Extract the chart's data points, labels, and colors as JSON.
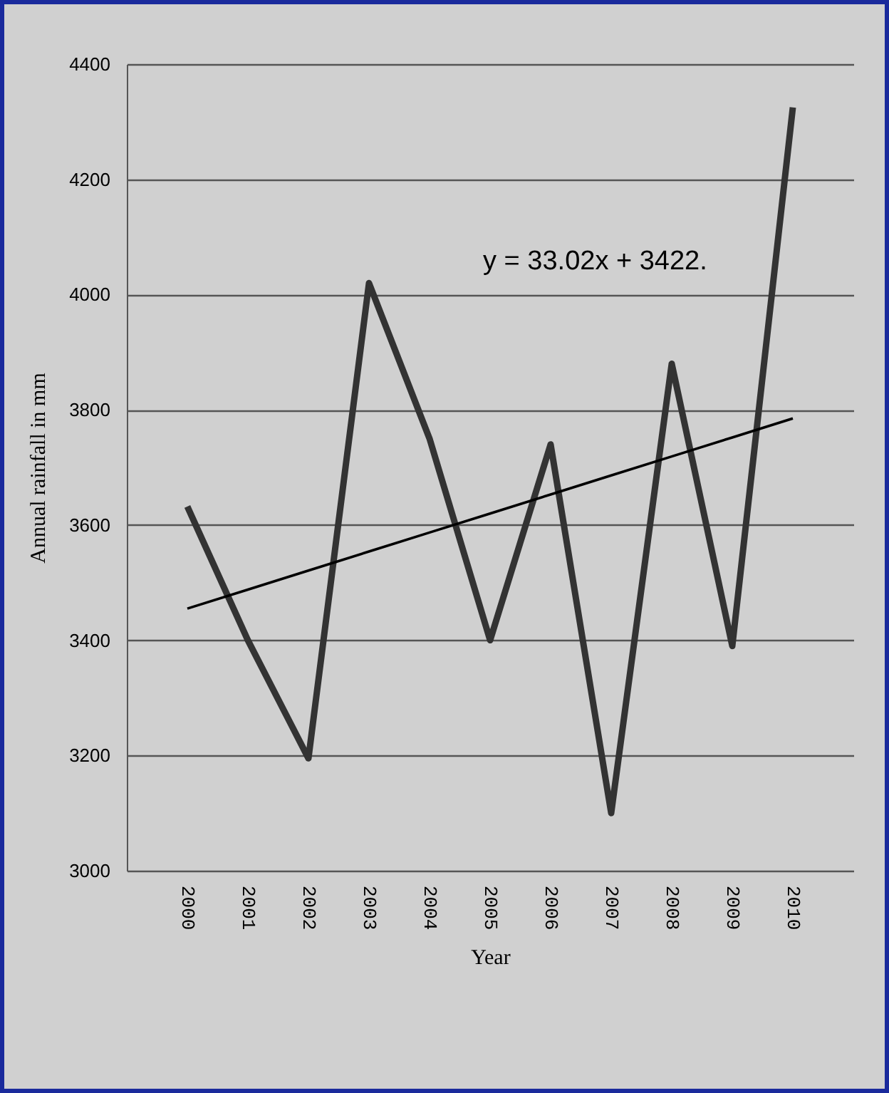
{
  "chart_data": {
    "type": "line",
    "xlabel": "Year",
    "ylabel": "Annual  rainfall in mm",
    "categories": [
      "2000",
      "2001",
      "2002",
      "2003",
      "2004",
      "2005",
      "2006",
      "2007",
      "2008",
      "2009",
      "2010"
    ],
    "series": [
      {
        "color": "#333333",
        "values": [
          3632,
          3400,
          3195,
          4020,
          3750,
          3400,
          3740,
          3100,
          3880,
          3390,
          4325
        ]
      },
      {
        "type": "line",
        "color": "#000000",
        "values": [
          3455,
          3488,
          3521,
          3554,
          3587,
          3620,
          3653,
          3686,
          3719,
          3752,
          3785
        ]
      }
    ],
    "ylim": [
      3000,
      4400
    ],
    "yticks": [
      3000,
      3200,
      3400,
      3600,
      3800,
      4000,
      4200,
      4400
    ],
    "grid": "y",
    "marker": "none",
    "line_style": "solid",
    "annotations": [
      "y = 33.02x + 3422."
    ]
  }
}
